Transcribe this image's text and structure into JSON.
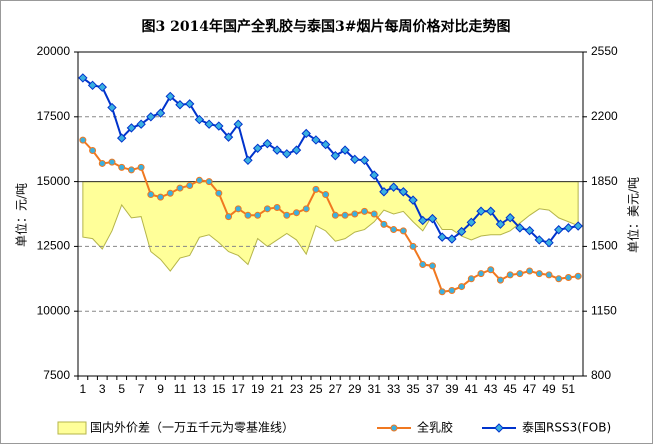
{
  "chart_data": {
    "type": "line",
    "title": "图3  2014年国产全乳胶与泰国3#烟片每周价格对比走势图",
    "ylabel": "单位：元/吨",
    "y2label": "单位：美元/吨",
    "categories": [
      "1",
      null,
      "3",
      null,
      "5",
      null,
      "7",
      null,
      "9",
      null,
      "11",
      null,
      "13",
      null,
      "15",
      null,
      "17",
      null,
      "19",
      null,
      "21",
      null,
      "23",
      null,
      "25",
      null,
      "27",
      null,
      "29",
      null,
      "31",
      null,
      "33",
      null,
      "35",
      null,
      "37",
      null,
      "39",
      null,
      "41",
      null,
      "43",
      null,
      "45",
      null,
      "47",
      null,
      "49",
      null,
      "51",
      null
    ],
    "ylim": [
      7500,
      20000
    ],
    "yticks": [
      7500,
      10000,
      12500,
      15000,
      17500,
      20000
    ],
    "y2lim": [
      800,
      2550
    ],
    "y2ticks": [
      800,
      1150,
      1500,
      1850,
      2200,
      2550
    ],
    "grid": true,
    "area_base": 15000,
    "series": [
      {
        "name": "国内外价差（一万五千元为零基准线）",
        "type": "area",
        "color": "#ffff99",
        "values": [
          12860,
          12800,
          12400,
          13100,
          14100,
          13600,
          13650,
          12300,
          12000,
          11550,
          12050,
          12150,
          12850,
          12950,
          12650,
          12300,
          12150,
          11800,
          12800,
          12500,
          12750,
          13000,
          12750,
          12200,
          13300,
          13100,
          12700,
          12800,
          13050,
          13150,
          13450,
          13900,
          13750,
          13850,
          13450,
          13100,
          13700,
          13150,
          13150,
          12900,
          12750,
          12900,
          12950,
          12950,
          13100,
          13400,
          13700,
          13950,
          13900,
          13600,
          13450,
          13300
        ]
      },
      {
        "name": "全乳胶",
        "type": "line",
        "color": "#f07820",
        "values": [
          16600,
          16200,
          15700,
          15750,
          15550,
          15450,
          15550,
          14500,
          14400,
          14550,
          14750,
          14850,
          15050,
          15000,
          14550,
          13650,
          13950,
          13700,
          13700,
          13950,
          14000,
          13700,
          13800,
          13950,
          14700,
          14500,
          13700,
          13700,
          13750,
          13850,
          13750,
          13350,
          13150,
          13100,
          12500,
          11800,
          11750,
          10750,
          10800,
          10950,
          11250,
          11450,
          11600,
          11200,
          11400,
          11450,
          11550,
          11450,
          11400,
          11250,
          11300,
          11350
        ]
      },
      {
        "name": "泰国RSS3(FOB)",
        "type": "line",
        "axis": "y2",
        "color": "#0033cc",
        "values": [
          2410,
          2370,
          2360,
          2250,
          2085,
          2140,
          2160,
          2200,
          2220,
          2310,
          2265,
          2270,
          2185,
          2160,
          2150,
          2090,
          2160,
          1965,
          2030,
          2055,
          2020,
          2000,
          2020,
          2110,
          2075,
          2050,
          1990,
          2020,
          1970,
          1965,
          1885,
          1795,
          1820,
          1795,
          1750,
          1640,
          1650,
          1550,
          1540,
          1580,
          1630,
          1690,
          1690,
          1620,
          1655,
          1600,
          1585,
          1535,
          1520,
          1590,
          1600,
          1610
        ]
      }
    ]
  }
}
